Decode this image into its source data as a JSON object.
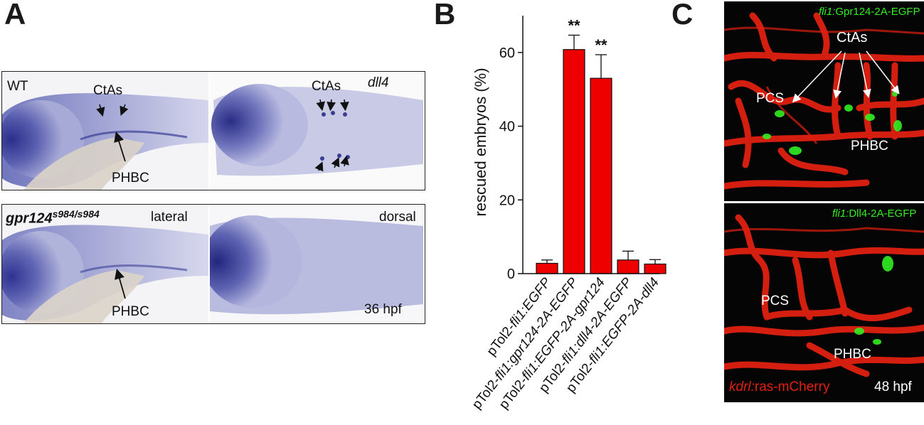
{
  "figure": {
    "panel_a_letter": "A",
    "panel_b_letter": "B",
    "panel_c_letter": "C"
  },
  "panel_a": {
    "top_left": {
      "genotype": "WT",
      "label_ctas": "CtAs",
      "label_phbc": "PHBC"
    },
    "top_right": {
      "genotype": "dll4",
      "label_ctas": "CtAs"
    },
    "bottom_left": {
      "genotype_base": "gpr124",
      "genotype_sup": "s984/s984",
      "view": "lateral",
      "label_phbc": "PHBC"
    },
    "bottom_right": {
      "view": "dorsal",
      "stage": "36 hpf"
    }
  },
  "panel_c": {
    "top": {
      "transgene_prefix": "fli1:",
      "transgene_rest": "Gpr124-2A-EGFP",
      "label_ctas": "CtAs",
      "label_pcs": "PCS",
      "label_phbc": "PHBC"
    },
    "bottom": {
      "transgene_prefix": "fli1:",
      "transgene_rest": "Dll4-2A-EGFP",
      "label_pcs": "PCS",
      "label_phbc": "PHBC",
      "reporter_prefix": "kdrl:",
      "reporter_rest": "ras-mCherry",
      "stage": "48 hpf"
    },
    "colors": {
      "vessel": "#e02010",
      "gfp": "#33ee22",
      "background": "#050505"
    }
  },
  "chart_data": {
    "type": "bar",
    "ylabel": "rescued embryos (%)",
    "ylim": [
      0,
      70
    ],
    "yticks": [
      0,
      20,
      40,
      60
    ],
    "categories_display": [
      [
        "pTol2-",
        "fli1:EGFP",
        ""
      ],
      [
        "pTol2-",
        "fli1:gpr124-2A-EGFP",
        ""
      ],
      [
        "pTol2-",
        "fli1:EGFP-2A-gpr124",
        ""
      ],
      [
        "pTol2-",
        "fli1:dll4-2A-EGFP",
        ""
      ],
      [
        "pTol2-",
        "fli1:EGFP-2A-dll4",
        ""
      ]
    ],
    "categories": [
      "pTol2-fli1:EGFP",
      "pTol2-fli1:gpr124-2A-EGFP",
      "pTol2-fli1:EGFP-2A-gpr124",
      "pTol2-fli1:dll4-2A-EGFP",
      "pTol2-fli1:EGFP-2A-dll4"
    ],
    "values": [
      2.8,
      60.8,
      53.0,
      3.7,
      2.6
    ],
    "errors": [
      0.9,
      3.9,
      6.4,
      2.4,
      1.2
    ],
    "significance": [
      "",
      "**",
      "**",
      "",
      ""
    ],
    "bar_color": "#ee0000"
  }
}
